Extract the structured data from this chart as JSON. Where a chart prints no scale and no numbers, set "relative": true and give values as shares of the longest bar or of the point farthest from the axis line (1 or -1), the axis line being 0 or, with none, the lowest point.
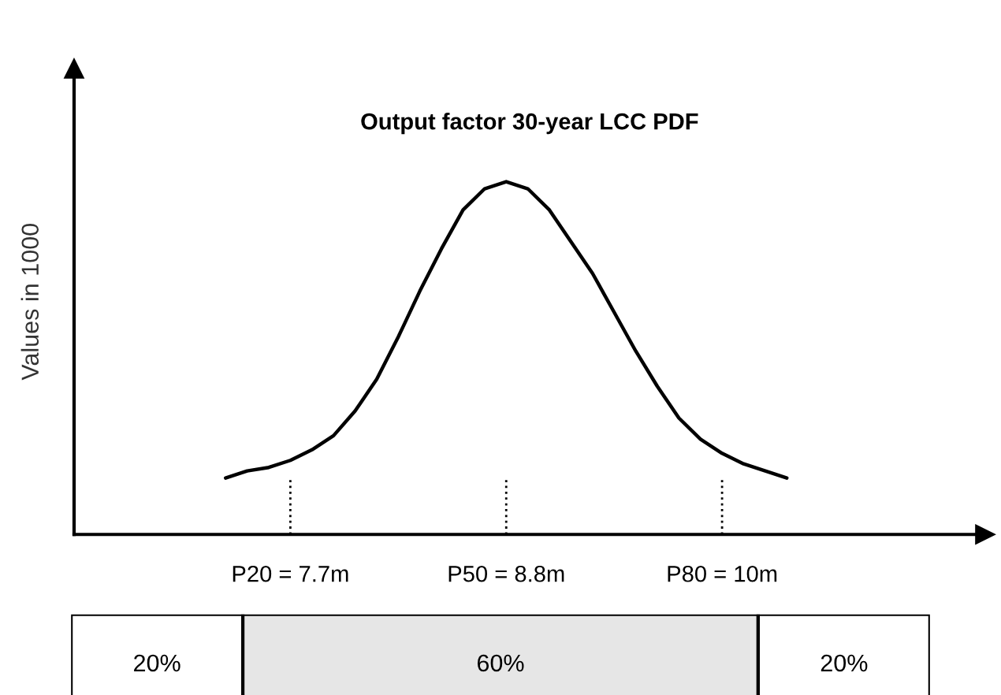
{
  "chart_data": [
    {
      "type": "line",
      "title": "Output factor 30-year LCC PDF",
      "ylabel": "Values in 1000",
      "relative": true,
      "categories": [
        null,
        null,
        null,
        "P20 = 7.7m",
        null,
        null,
        null,
        null,
        null,
        null,
        null,
        null,
        null,
        "P50 = 8.8m",
        null,
        null,
        null,
        null,
        null,
        null,
        null,
        null,
        null,
        "P80 = 10m",
        null,
        null,
        null
      ],
      "series": [
        {
          "color": "#000000",
          "values": [
            0.16,
            0.18,
            0.19,
            0.21,
            0.24,
            0.28,
            0.35,
            0.44,
            0.56,
            0.69,
            0.81,
            0.92,
            0.98,
            1,
            0.98,
            0.92,
            0.83,
            0.74,
            0.63,
            0.52,
            0.42,
            0.33,
            0.27,
            0.23,
            0.2,
            0.18,
            0.16
          ]
        }
      ],
      "ref_lines": [
        {
          "axis": "x",
          "value": "P20 = 7.7m",
          "line_style": "dotted",
          "color": "#000000"
        },
        {
          "axis": "x",
          "value": "P50 = 8.8m",
          "line_style": "dotted",
          "color": "#000000"
        },
        {
          "axis": "x",
          "value": "P80 = 10m",
          "line_style": "dotted",
          "color": "#000000"
        }
      ],
      "grid": false,
      "marker": "none",
      "line_style": "solid"
    },
    {
      "type": "bar",
      "orientation": "horizontal",
      "stacked": true,
      "categories": [
        null
      ],
      "tick_labels": false,
      "series": [
        {
          "color": "#ffffff",
          "values": [
            20
          ],
          "value_labels": [
            "20%"
          ]
        },
        {
          "color": "#e6e6e6",
          "values": [
            60
          ],
          "value_labels": [
            "60%"
          ]
        },
        {
          "color": "#ffffff",
          "values": [
            20
          ],
          "value_labels": [
            "20%"
          ]
        }
      ]
    }
  ]
}
